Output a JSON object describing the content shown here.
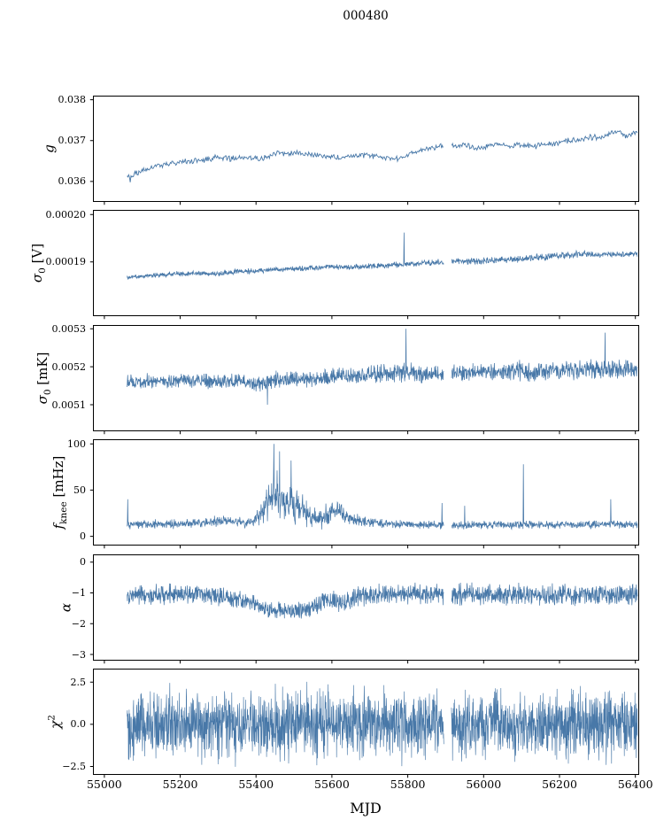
{
  "title": "000480",
  "xlabel": "MJD",
  "line_color": "#4878a8",
  "axis_color": "#000000",
  "x_axis": {
    "range": [
      54970,
      56410
    ],
    "ticks": [
      55000,
      55200,
      55400,
      55600,
      55800,
      56000,
      56200,
      56400
    ],
    "tick_labels": [
      "55000",
      "55200",
      "55400",
      "55600",
      "55800",
      "56000",
      "56200",
      "56400"
    ]
  },
  "x_data_range": [
    55060,
    56405
  ],
  "gaps": [
    [
      55895,
      55915
    ]
  ],
  "chart_data": [
    {
      "type": "line",
      "name": "g",
      "ylabel": {
        "main": "g",
        "italic": true,
        "sub": "",
        "sup": "",
        "unit": ""
      },
      "ylim": [
        0.0355,
        0.0381
      ],
      "yticks": [
        {
          "v": 0.038,
          "label": "0.038"
        },
        {
          "v": 0.037,
          "label": "0.037"
        },
        {
          "v": 0.036,
          "label": "0.036"
        }
      ],
      "points": 650,
      "stroke": 0.9,
      "noise": "tri",
      "trend": [
        [
          55060,
          0.03612
        ],
        [
          55100,
          0.03625
        ],
        [
          55140,
          0.03638
        ],
        [
          55180,
          0.03645
        ],
        [
          55220,
          0.0365
        ],
        [
          55260,
          0.03652
        ],
        [
          55300,
          0.0366
        ],
        [
          55330,
          0.03655
        ],
        [
          55370,
          0.0366
        ],
        [
          55410,
          0.03655
        ],
        [
          55450,
          0.03668
        ],
        [
          55490,
          0.0367
        ],
        [
          55530,
          0.03668
        ],
        [
          55570,
          0.03662
        ],
        [
          55610,
          0.03658
        ],
        [
          55650,
          0.03662
        ],
        [
          55690,
          0.03665
        ],
        [
          55730,
          0.0366
        ],
        [
          55770,
          0.03655
        ],
        [
          55800,
          0.03665
        ],
        [
          55830,
          0.03675
        ],
        [
          55860,
          0.0368
        ],
        [
          55890,
          0.03688
        ],
        [
          55920,
          0.03685
        ],
        [
          55950,
          0.0369
        ],
        [
          55980,
          0.0368
        ],
        [
          56010,
          0.03685
        ],
        [
          56040,
          0.0369
        ],
        [
          56070,
          0.03685
        ],
        [
          56100,
          0.0369
        ],
        [
          56130,
          0.03685
        ],
        [
          56160,
          0.0369
        ],
        [
          56190,
          0.03692
        ],
        [
          56220,
          0.037
        ],
        [
          56250,
          0.037
        ],
        [
          56280,
          0.03708
        ],
        [
          56310,
          0.0371
        ],
        [
          56340,
          0.03718
        ],
        [
          56355,
          0.03725
        ],
        [
          56370,
          0.0371
        ],
        [
          56385,
          0.03715
        ],
        [
          56405,
          0.03722
        ]
      ],
      "amp": [
        [
          55060,
          8e-05
        ],
        [
          56405,
          8e-05
        ]
      ],
      "spikes": [
        [
          55068,
          0.03598
        ]
      ],
      "clamp_min": null
    },
    {
      "type": "line",
      "name": "sigma0_V",
      "ylabel": {
        "main": "σ",
        "italic": true,
        "sub": "0",
        "sup": "",
        "unit": "[V]"
      },
      "ylim": [
        0.0001785,
        0.000201
      ],
      "yticks": [
        {
          "v": 0.0002,
          "label": "0.00020"
        },
        {
          "v": 0.00019,
          "label": "0.00019"
        }
      ],
      "points": 1600,
      "stroke": 0.75,
      "noise": "tri",
      "trend": [
        [
          55060,
          0.0001867
        ],
        [
          55120,
          0.0001871
        ],
        [
          55180,
          0.0001874
        ],
        [
          55240,
          0.0001876
        ],
        [
          55290,
          0.0001874
        ],
        [
          55340,
          0.0001879
        ],
        [
          55400,
          0.0001881
        ],
        [
          55460,
          0.0001884
        ],
        [
          55520,
          0.0001886
        ],
        [
          55580,
          0.0001889
        ],
        [
          55640,
          0.0001889
        ],
        [
          55700,
          0.0001891
        ],
        [
          55760,
          0.0001893
        ],
        [
          55820,
          0.0001896
        ],
        [
          55880,
          0.0001899
        ],
        [
          55905,
          0.0001901
        ],
        [
          55960,
          0.0001901
        ],
        [
          56020,
          0.0001903
        ],
        [
          56080,
          0.0001906
        ],
        [
          56140,
          0.0001909
        ],
        [
          56200,
          0.0001913
        ],
        [
          56260,
          0.0001917
        ],
        [
          56310,
          0.0001915
        ],
        [
          56360,
          0.0001916
        ],
        [
          56405,
          0.0001917
        ]
      ],
      "amp": [
        [
          55060,
          6e-07
        ],
        [
          55800,
          7e-07
        ],
        [
          56150,
          9e-07
        ],
        [
          56405,
          7e-07
        ]
      ],
      "spikes": [
        [
          55790,
          0.0001962
        ]
      ],
      "clamp_min": null
    },
    {
      "type": "line",
      "name": "sigma0_mK",
      "ylabel": {
        "main": "σ",
        "italic": true,
        "sub": "0",
        "sup": "",
        "unit": "[mK]"
      },
      "ylim": [
        0.00503,
        0.00531
      ],
      "yticks": [
        {
          "v": 0.0053,
          "label": "0.0053"
        },
        {
          "v": 0.0052,
          "label": "0.0052"
        },
        {
          "v": 0.0051,
          "label": "0.0051"
        }
      ],
      "points": 1600,
      "stroke": 0.75,
      "noise": "tri",
      "trend": [
        [
          55060,
          0.00516
        ],
        [
          55120,
          0.005163
        ],
        [
          55180,
          0.00516
        ],
        [
          55240,
          0.005164
        ],
        [
          55300,
          0.00516
        ],
        [
          55360,
          0.005164
        ],
        [
          55410,
          0.005155
        ],
        [
          55440,
          0.005165
        ],
        [
          55500,
          0.005168
        ],
        [
          55560,
          0.00517
        ],
        [
          55620,
          0.005175
        ],
        [
          55680,
          0.005178
        ],
        [
          55740,
          0.005182
        ],
        [
          55790,
          0.005188
        ],
        [
          55830,
          0.005178
        ],
        [
          55870,
          0.005182
        ],
        [
          55905,
          0.005185
        ],
        [
          55960,
          0.005185
        ],
        [
          56020,
          0.005188
        ],
        [
          56080,
          0.005192
        ],
        [
          56130,
          0.005185
        ],
        [
          56180,
          0.005193
        ],
        [
          56230,
          0.005192
        ],
        [
          56280,
          0.005195
        ],
        [
          56330,
          0.00519
        ],
        [
          56370,
          0.005196
        ],
        [
          56405,
          0.005188
        ]
      ],
      "amp": [
        [
          55060,
          2.2e-05
        ],
        [
          55380,
          2.2e-05
        ],
        [
          55430,
          2.8e-05
        ],
        [
          55600,
          2.5e-05
        ],
        [
          55790,
          3.2e-05
        ],
        [
          55850,
          2.5e-05
        ],
        [
          56000,
          2.6e-05
        ],
        [
          56100,
          3e-05
        ],
        [
          56200,
          2.8e-05
        ],
        [
          56300,
          3.2e-05
        ],
        [
          56405,
          3e-05
        ]
      ],
      "spikes": [
        [
          55430,
          0.0051
        ],
        [
          55795,
          0.0053
        ],
        [
          56320,
          0.00529
        ]
      ],
      "clamp_min": null
    },
    {
      "type": "line",
      "name": "f_knee",
      "ylabel": {
        "main": "f",
        "italic": true,
        "sub": "knee",
        "sup": "",
        "unit": "[mHz]"
      },
      "ylim": [
        -10,
        105
      ],
      "yticks": [
        {
          "v": 100,
          "label": "100"
        },
        {
          "v": 50,
          "label": "50"
        },
        {
          "v": 0,
          "label": "0"
        }
      ],
      "points": 1600,
      "stroke": 0.75,
      "noise": "tri",
      "trend": [
        [
          55060,
          13
        ],
        [
          55150,
          13
        ],
        [
          55230,
          14
        ],
        [
          55280,
          16
        ],
        [
          55320,
          17
        ],
        [
          55350,
          15
        ],
        [
          55390,
          16
        ],
        [
          55415,
          25
        ],
        [
          55435,
          40
        ],
        [
          55450,
          45
        ],
        [
          55465,
          40
        ],
        [
          55485,
          36
        ],
        [
          55510,
          30
        ],
        [
          55540,
          22
        ],
        [
          55570,
          18
        ],
        [
          55595,
          26
        ],
        [
          55615,
          28
        ],
        [
          55640,
          22
        ],
        [
          55670,
          17
        ],
        [
          55710,
          14
        ],
        [
          55760,
          13
        ],
        [
          55905,
          12
        ],
        [
          56405,
          13
        ]
      ],
      "amp": [
        [
          55060,
          6
        ],
        [
          55250,
          6
        ],
        [
          55300,
          7
        ],
        [
          55350,
          6
        ],
        [
          55400,
          9
        ],
        [
          55425,
          22
        ],
        [
          55450,
          30
        ],
        [
          55480,
          26
        ],
        [
          55520,
          20
        ],
        [
          55560,
          12
        ],
        [
          55600,
          14
        ],
        [
          55630,
          10
        ],
        [
          55670,
          7
        ],
        [
          55720,
          6
        ],
        [
          55780,
          5
        ],
        [
          56405,
          5
        ]
      ],
      "spikes": [
        [
          55062,
          40
        ],
        [
          55447,
          100
        ],
        [
          55462,
          92
        ],
        [
          55492,
          82
        ],
        [
          55890,
          36
        ],
        [
          55950,
          33
        ],
        [
          56105,
          78
        ],
        [
          56335,
          40
        ]
      ],
      "clamp_min": 4
    },
    {
      "type": "line",
      "name": "alpha",
      "ylabel": {
        "main": "α",
        "italic": true,
        "sub": "",
        "sup": "",
        "unit": ""
      },
      "ylim": [
        -3.2,
        0.25
      ],
      "yticks": [
        {
          "v": 0,
          "label": "0"
        },
        {
          "v": -1,
          "label": "−1"
        },
        {
          "v": -2,
          "label": "−2"
        },
        {
          "v": -3,
          "label": "−3"
        }
      ],
      "points": 1700,
      "stroke": 0.75,
      "noise": "tri",
      "trend": [
        [
          55060,
          -1.05
        ],
        [
          55260,
          -1.05
        ],
        [
          55310,
          -1.12
        ],
        [
          55350,
          -1.22
        ],
        [
          55390,
          -1.3
        ],
        [
          55420,
          -1.5
        ],
        [
          55460,
          -1.58
        ],
        [
          55500,
          -1.6
        ],
        [
          55540,
          -1.55
        ],
        [
          55565,
          -1.4
        ],
        [
          55585,
          -1.2
        ],
        [
          55605,
          -1.3
        ],
        [
          55630,
          -1.38
        ],
        [
          55655,
          -1.15
        ],
        [
          55680,
          -1.08
        ],
        [
          55730,
          -1.05
        ],
        [
          56405,
          -1.05
        ]
      ],
      "amp": [
        [
          55060,
          0.4
        ],
        [
          55300,
          0.34
        ],
        [
          55420,
          0.3
        ],
        [
          55560,
          0.36
        ],
        [
          55650,
          0.4
        ],
        [
          56405,
          0.4
        ]
      ],
      "spikes": [],
      "clamp_min": null
    },
    {
      "type": "line",
      "name": "chi2",
      "ylabel": {
        "main": "χ",
        "italic": true,
        "sub": "",
        "sup": "2",
        "unit": ""
      },
      "ylim": [
        -3.0,
        3.3
      ],
      "yticks": [
        {
          "v": 2.5,
          "label": "2.5"
        },
        {
          "v": 0,
          "label": "0.0"
        },
        {
          "v": -2.5,
          "label": "−2.5"
        }
      ],
      "points": 2200,
      "stroke": 0.65,
      "noise": "bell",
      "trend": [
        [
          55060,
          0
        ],
        [
          56405,
          0
        ]
      ],
      "amp": [
        [
          55060,
          2.8
        ],
        [
          56405,
          2.8
        ]
      ],
      "spikes": [],
      "clamp_min": null
    }
  ]
}
